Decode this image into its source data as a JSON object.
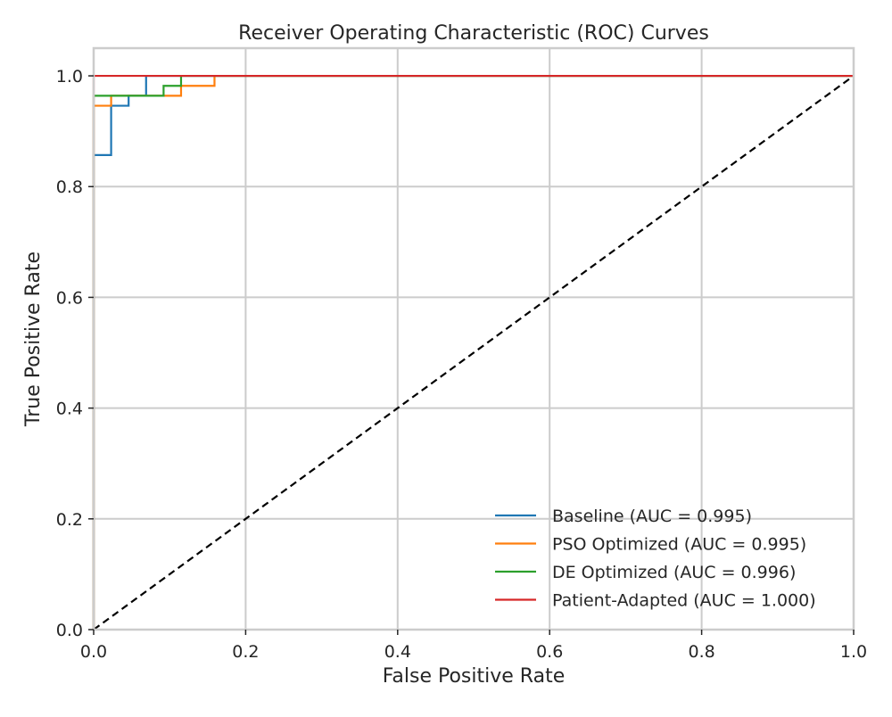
{
  "chart_data": {
    "type": "line",
    "title": "Receiver Operating Characteristic (ROC) Curves",
    "xlabel": "False Positive Rate",
    "ylabel": "True Positive Rate",
    "xlim": [
      0.0,
      1.0
    ],
    "ylim": [
      0.0,
      1.05
    ],
    "xticks": [
      0.0,
      0.2,
      0.4,
      0.6,
      0.8,
      1.0
    ],
    "yticks": [
      0.0,
      0.2,
      0.4,
      0.6,
      0.8,
      1.0
    ],
    "xtick_labels": [
      "0.0",
      "0.2",
      "0.4",
      "0.6",
      "0.8",
      "1.0"
    ],
    "ytick_labels": [
      "0.0",
      "0.2",
      "0.4",
      "0.6",
      "0.8",
      "1.0"
    ],
    "grid": true,
    "legend_position": "lower-right",
    "series": [
      {
        "name": "Baseline (AUC = 0.995)",
        "color": "#1f77b4",
        "x": [
          0.0,
          0.0,
          0.023,
          0.023,
          0.046,
          0.046,
          0.069,
          0.069,
          1.0
        ],
        "y": [
          0.0,
          0.857,
          0.857,
          0.946,
          0.946,
          0.964,
          0.964,
          1.0,
          1.0
        ]
      },
      {
        "name": "PSO Optimized (AUC = 0.995)",
        "color": "#ff7f0e",
        "x": [
          0.0,
          0.0,
          0.023,
          0.023,
          0.115,
          0.115,
          0.159,
          0.159,
          1.0
        ],
        "y": [
          0.0,
          0.946,
          0.946,
          0.964,
          0.964,
          0.982,
          0.982,
          1.0,
          1.0
        ]
      },
      {
        "name": "DE Optimized (AUC = 0.996)",
        "color": "#2ca02c",
        "x": [
          0.0,
          0.0,
          0.092,
          0.092,
          0.115,
          0.115,
          1.0
        ],
        "y": [
          0.0,
          0.964,
          0.964,
          0.982,
          0.982,
          1.0,
          1.0
        ]
      },
      {
        "name": "Patient-Adapted (AUC = 1.000)",
        "color": "#d62728",
        "x": [
          0.0,
          0.0,
          1.0
        ],
        "y": [
          0.0,
          1.0,
          1.0
        ]
      }
    ],
    "reference_line": {
      "color": "#000000",
      "style": "dashed",
      "x": [
        0.0,
        1.0
      ],
      "y": [
        0.0,
        1.0
      ]
    }
  }
}
